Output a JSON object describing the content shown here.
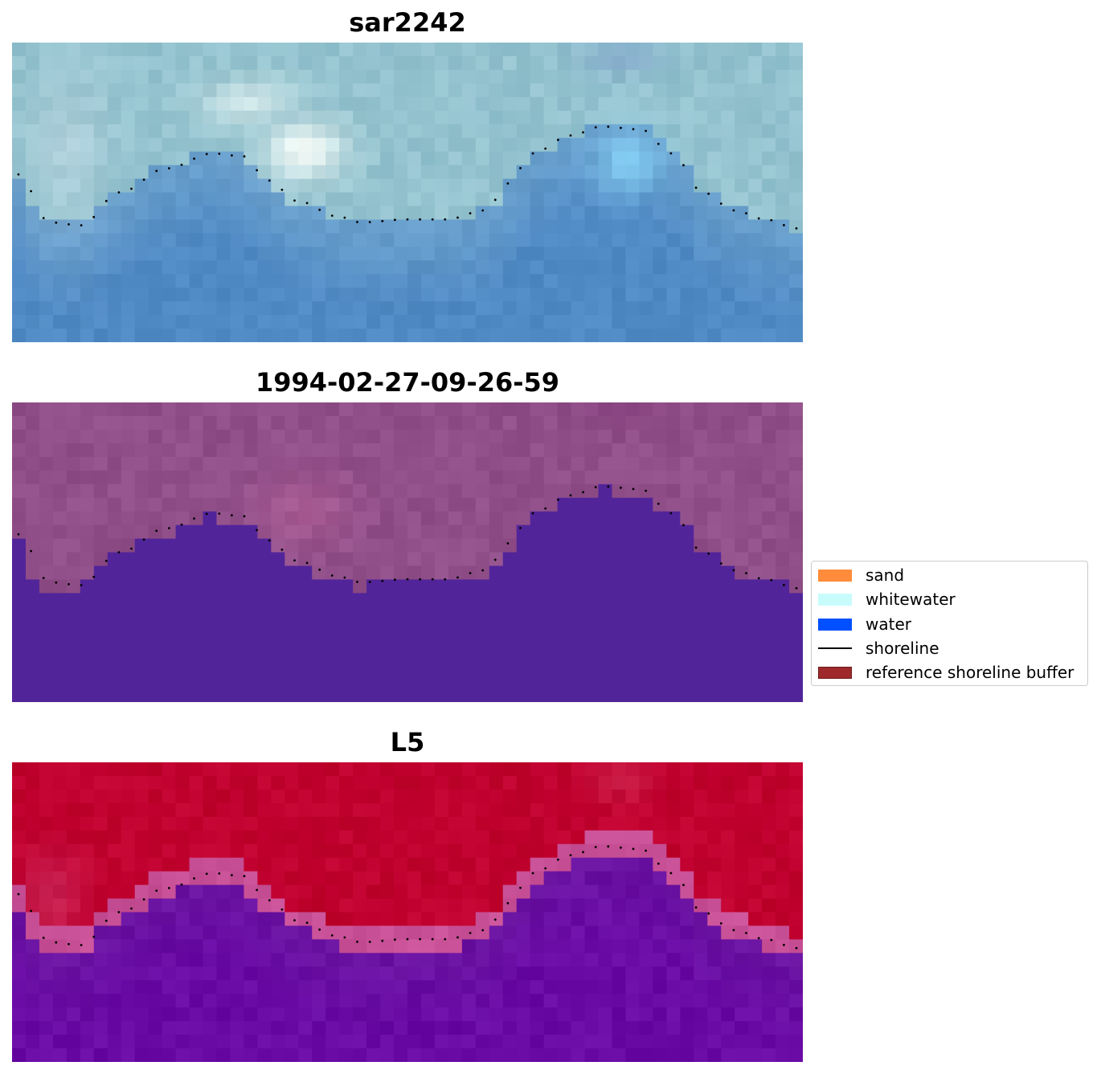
{
  "panels": [
    {
      "title": "sar2242",
      "scheme": "rgb"
    },
    {
      "title": "1994-02-27-09-26-59",
      "scheme": "class"
    },
    {
      "title": "L5",
      "scheme": "prob"
    }
  ],
  "legend": {
    "items": [
      {
        "label": "sand",
        "kind": "patch",
        "color": "#ff8c3a"
      },
      {
        "label": "whitewater",
        "kind": "patch",
        "color": "#c8fcfc"
      },
      {
        "label": "water",
        "kind": "patch",
        "color": "#0050ff"
      },
      {
        "label": "shoreline",
        "kind": "line",
        "color": "#000000"
      },
      {
        "label": "reference shoreline buffer",
        "kind": "patch",
        "color": "#9e2a2b"
      }
    ]
  },
  "colors": {
    "water_class": "#52249a",
    "land_class": "#904f89",
    "prob_land": "#c0002e",
    "prob_water": "#6a14a0"
  }
}
